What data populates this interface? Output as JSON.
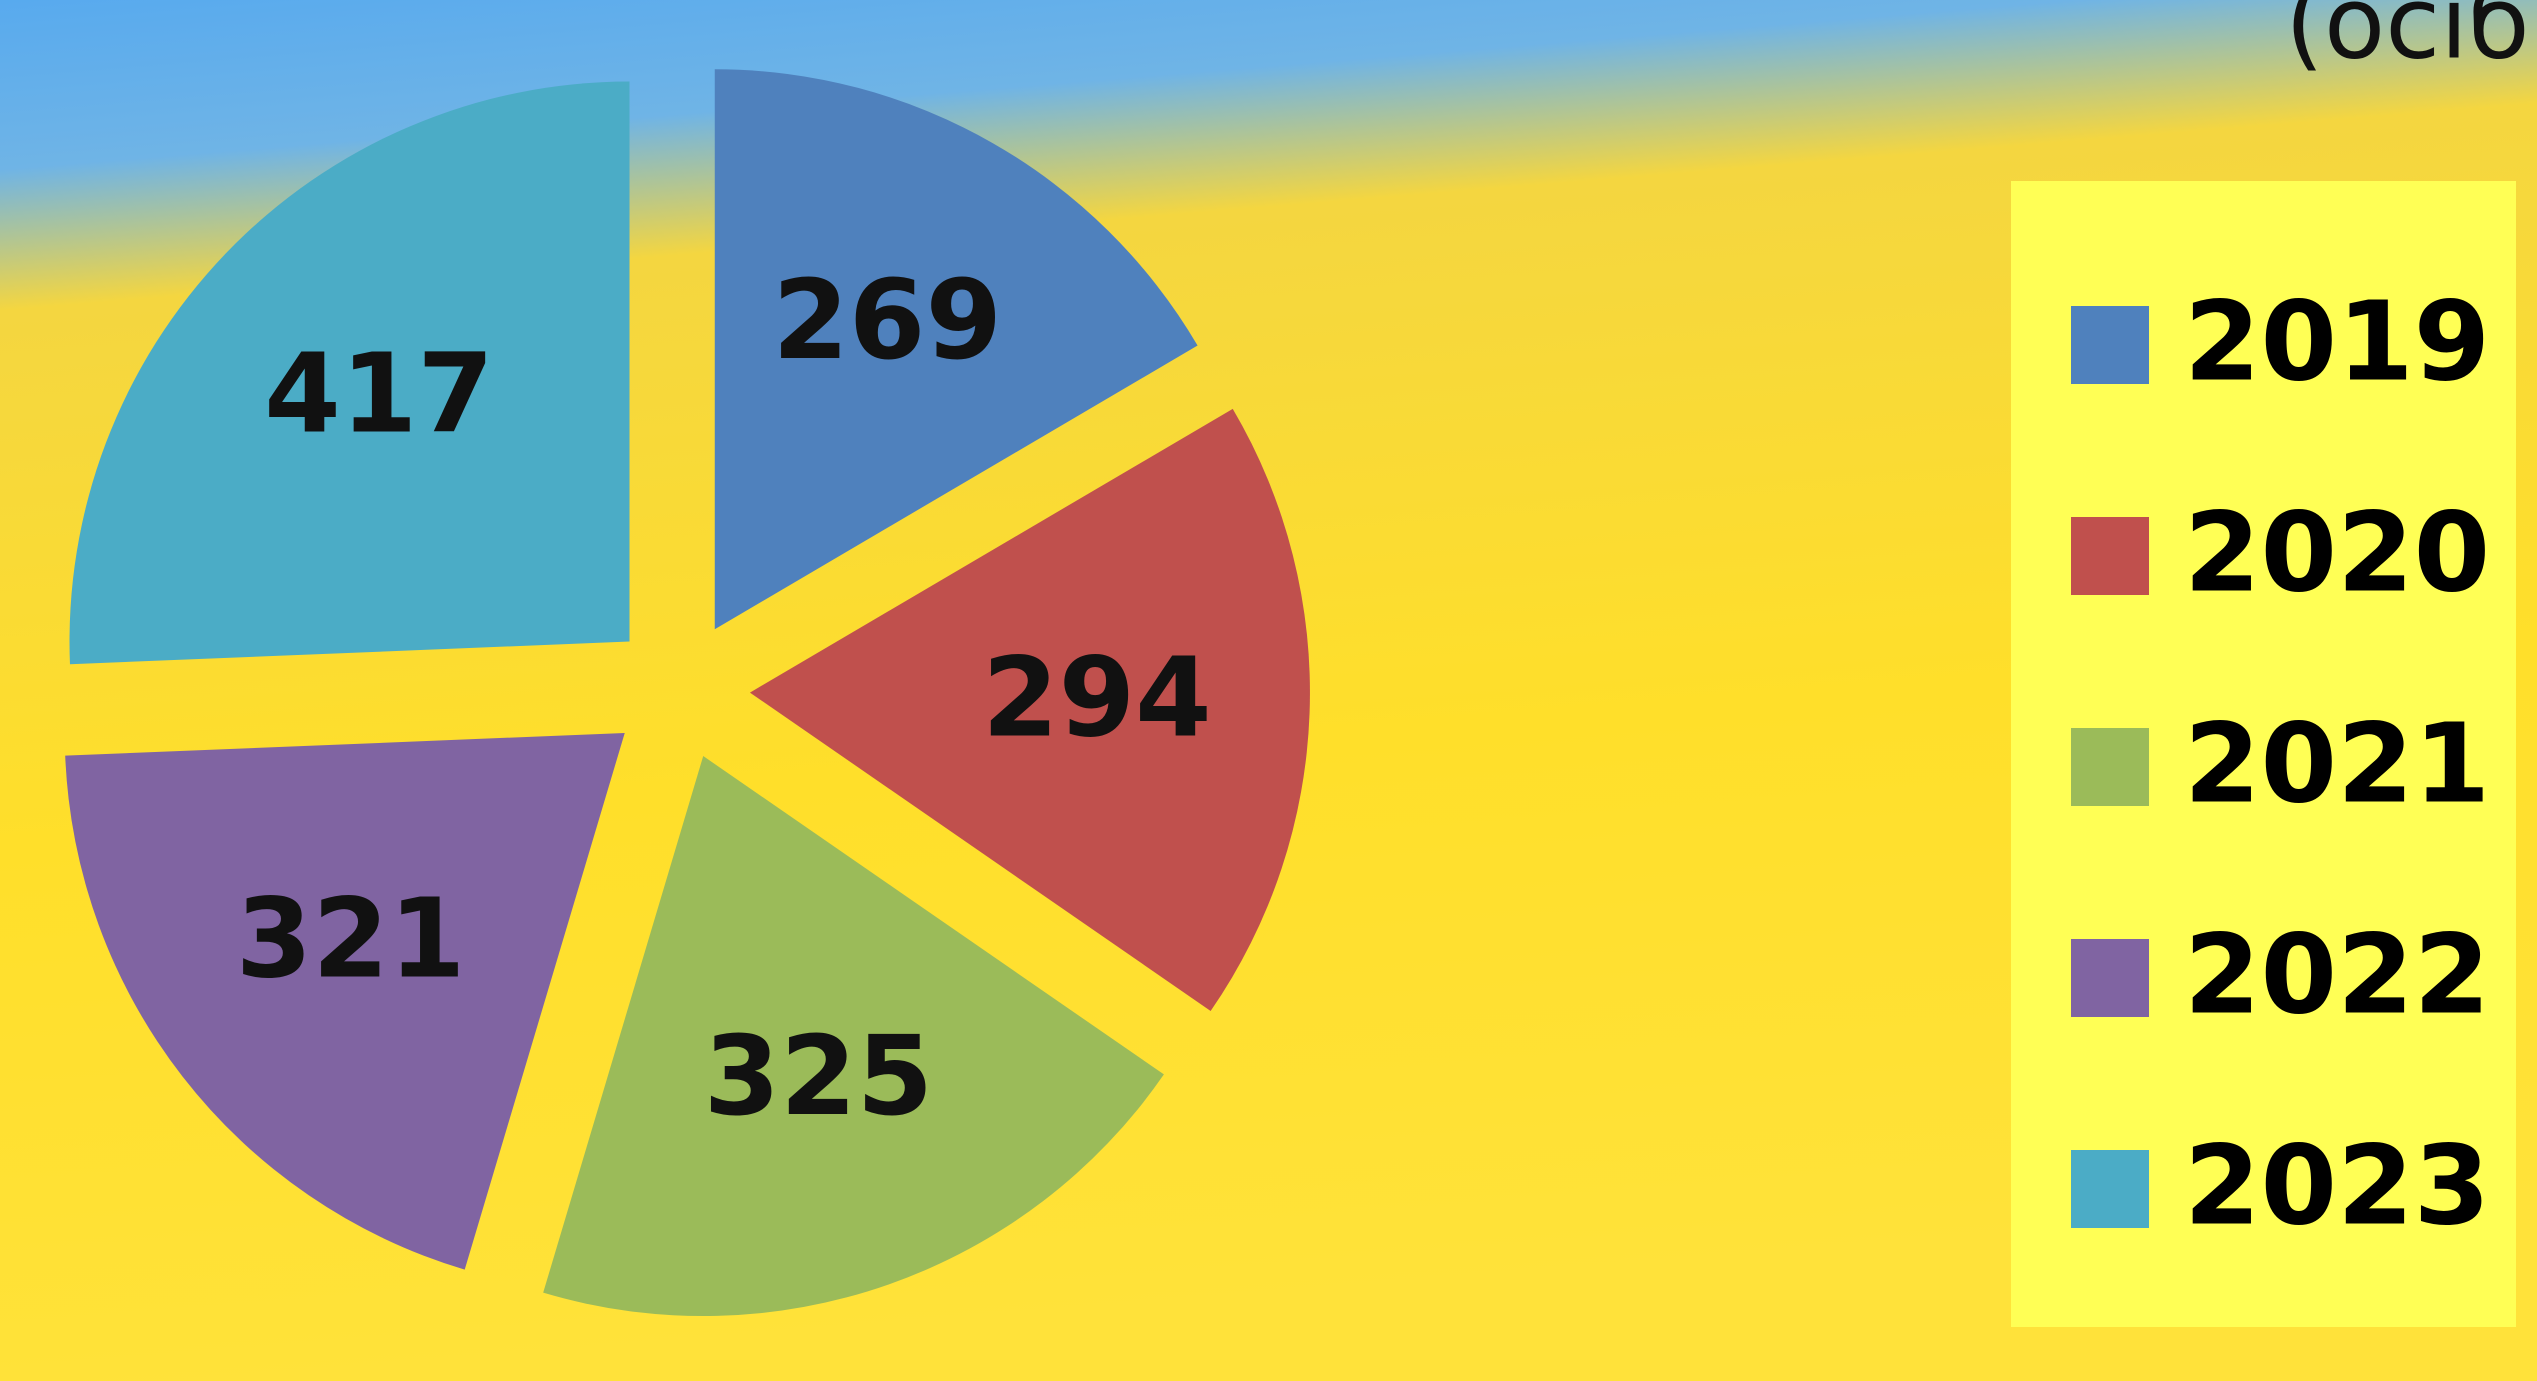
{
  "chart_data": {
    "type": "pie",
    "subtitle": "(осіб)",
    "categories": [
      "2019",
      "2020",
      "2021",
      "2022",
      "2023"
    ],
    "values": [
      269,
      294,
      325,
      321,
      417
    ],
    "colors": [
      "#4f81bd",
      "#c0504d",
      "#9bbb59",
      "#8064a2",
      "#4bacc6"
    ],
    "legend": "right"
  }
}
